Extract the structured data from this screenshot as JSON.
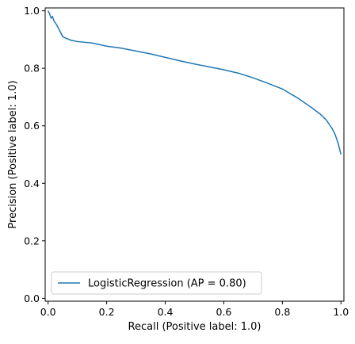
{
  "chart_data": {
    "type": "line",
    "xlabel": "Recall (Positive label: 1.0)",
    "ylabel": "Precision (Positive label: 1.0)",
    "xlim": [
      -0.01,
      1.01
    ],
    "ylim": [
      -0.01,
      1.01
    ],
    "xticks": [
      "0.0",
      "0.2",
      "0.4",
      "0.6",
      "0.8",
      "1.0"
    ],
    "yticks": [
      "0.0",
      "0.2",
      "0.4",
      "0.6",
      "0.8",
      "1.0"
    ],
    "grid": false,
    "legend_position": "lower-left",
    "series": [
      {
        "name": "LogisticRegression (AP = 0.80)",
        "color": "#1f77b4",
        "x": [
          0.0,
          0.005,
          0.01,
          0.015,
          0.02,
          0.03,
          0.04,
          0.05,
          0.06,
          0.08,
          0.1,
          0.15,
          0.2,
          0.25,
          0.3,
          0.35,
          0.4,
          0.45,
          0.5,
          0.55,
          0.6,
          0.65,
          0.7,
          0.75,
          0.8,
          0.85,
          0.9,
          0.93,
          0.95,
          0.97,
          0.98,
          0.99,
          0.995,
          1.0
        ],
        "y": [
          1.0,
          0.99,
          0.975,
          0.98,
          0.965,
          0.95,
          0.93,
          0.91,
          0.905,
          0.897,
          0.893,
          0.888,
          0.877,
          0.87,
          0.86,
          0.85,
          0.838,
          0.826,
          0.815,
          0.805,
          0.795,
          0.783,
          0.767,
          0.748,
          0.728,
          0.698,
          0.663,
          0.64,
          0.62,
          0.59,
          0.57,
          0.54,
          0.52,
          0.5
        ]
      }
    ]
  }
}
